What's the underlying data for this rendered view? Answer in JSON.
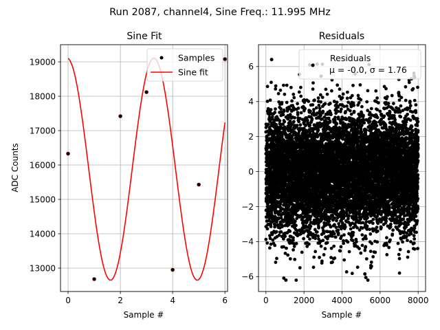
{
  "figure": {
    "suptitle": "Run 2087, channel4, Sine Freq.: 11.995 MHz"
  },
  "chart_data": [
    {
      "type": "line",
      "title": "Sine Fit",
      "xlabel": "Sample #",
      "ylabel": "ADC Counts",
      "xlim": [
        -0.29,
        6.1
      ],
      "ylim": [
        12320,
        19500
      ],
      "xticks": [
        0,
        2,
        4,
        6
      ],
      "yticks": [
        13000,
        14000,
        15000,
        16000,
        17000,
        18000,
        19000
      ],
      "grid": true,
      "legend_position": "top-right",
      "fit": {
        "mean": 15880,
        "amplitude": 3230,
        "omega": 1.8925,
        "phase": 1.6445
      },
      "series": [
        {
          "name": "Samples",
          "kind": "scatter",
          "color": "#000000",
          "marker_edge": "#8b0000",
          "x": [
            0,
            1,
            2,
            3,
            4,
            5,
            6
          ],
          "y": [
            16330,
            12680,
            17420,
            18120,
            12950,
            15430,
            19080
          ]
        },
        {
          "name": "Sine fit",
          "kind": "line",
          "color": "#ff0000",
          "x_range": [
            0,
            6
          ]
        }
      ]
    },
    {
      "type": "scatter",
      "title": "Residuals",
      "xlabel": "Sample #",
      "ylabel": "",
      "xlim": [
        -390,
        8390
      ],
      "ylim": [
        -6.85,
        7.25
      ],
      "xticks": [
        0,
        2000,
        4000,
        6000,
        8000
      ],
      "yticks": [
        -6,
        -4,
        -2,
        0,
        2,
        4,
        6
      ],
      "grid": true,
      "legend_position": "top-right",
      "series": [
        {
          "name": "Residuals",
          "color": "#000000",
          "n_points": 8000,
          "x_range": [
            0,
            7999
          ],
          "mean": -0.0,
          "std": 1.76,
          "min": -6.2,
          "max": 6.4,
          "notable_points": [
            {
              "x": 1050,
              "y": -6.2
            },
            {
              "x": 5250,
              "y": -6.05
            },
            {
              "x": 5200,
              "y": -5.85
            },
            {
              "x": 300,
              "y": 6.4
            },
            {
              "x": 2500,
              "y": 6.1
            },
            {
              "x": 7650,
              "y": 5.3
            },
            {
              "x": 2900,
              "y": 5.45
            }
          ]
        }
      ],
      "legend_stats": "μ = -0.0, σ = 1.76"
    }
  ]
}
